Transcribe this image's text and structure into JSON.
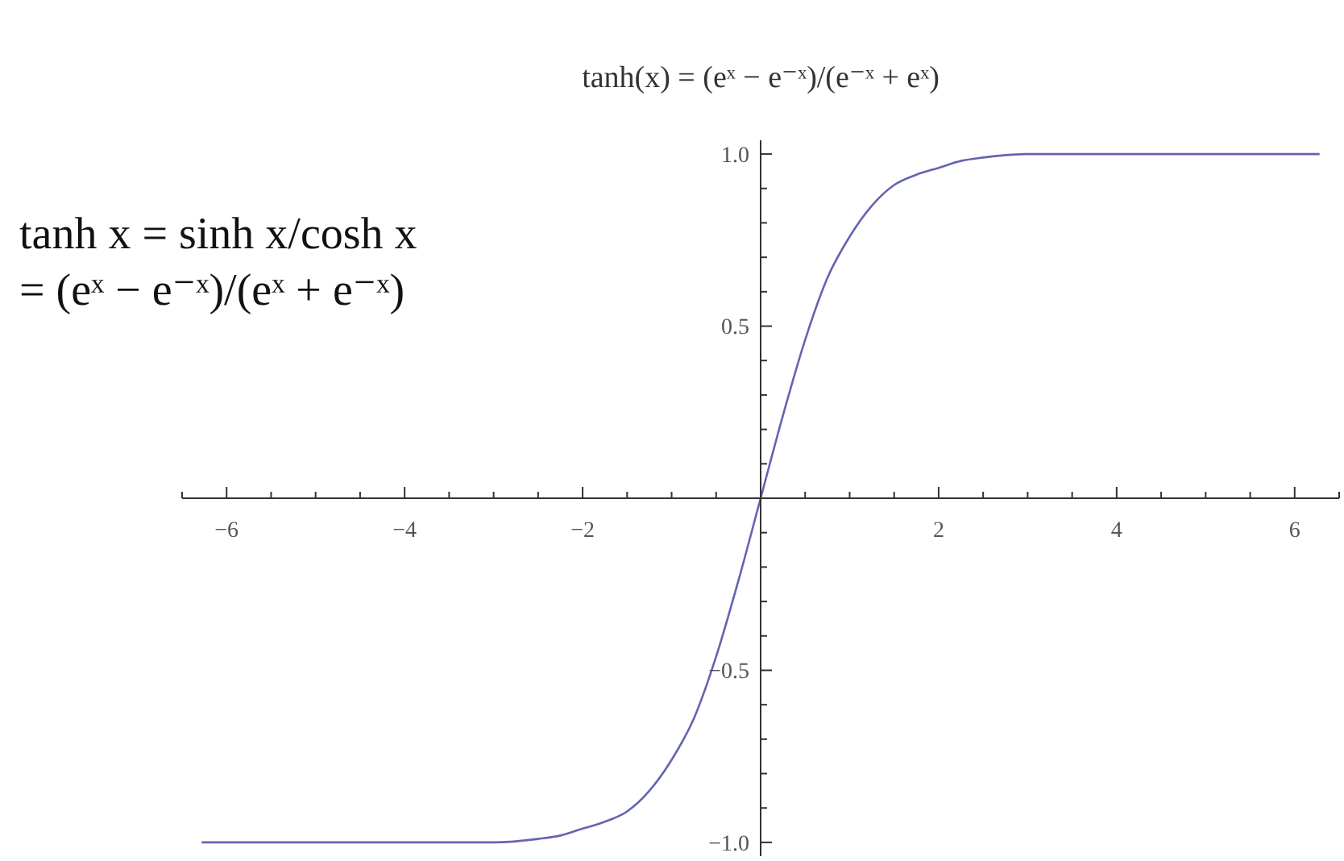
{
  "chart_data": {
    "type": "line",
    "title": "tanh(x) = (eˣ − e⁻ˣ)/(e⁻ˣ + eˣ)",
    "annotations": [
      "tanh x = sinh x/cosh x = (eˣ − e⁻ˣ)/(eˣ + e⁻ˣ)"
    ],
    "x": [
      -6.28,
      -5,
      -4,
      -3,
      -2.5,
      -2.25,
      -2,
      -1.75,
      -1.5,
      -1.25,
      -1,
      -0.75,
      -0.5,
      -0.25,
      0,
      0.25,
      0.5,
      0.75,
      1,
      1.25,
      1.5,
      1.75,
      2,
      2.25,
      2.5,
      3,
      4,
      5,
      6.28
    ],
    "series": [
      {
        "color": "#6464b2",
        "values": [
          -1,
          -1,
          -1,
          -1,
          -0.99,
          -0.98,
          -0.96,
          -0.94,
          -0.91,
          -0.85,
          -0.76,
          -0.64,
          -0.46,
          -0.24,
          0,
          0.24,
          0.46,
          0.64,
          0.76,
          0.85,
          0.91,
          0.94,
          0.96,
          0.98,
          0.99,
          1,
          1,
          1,
          1
        ]
      }
    ],
    "xlim": [
      -6.5,
      6.5
    ],
    "ylim": [
      -1.04,
      1.04
    ],
    "xticks": [
      {
        "value": -6.5,
        "label": null
      },
      -6,
      {
        "value": -5.5,
        "label": null
      },
      {
        "value": -5,
        "label": null
      },
      {
        "value": -4.5,
        "label": null
      },
      -4,
      {
        "value": -3.5,
        "label": null
      },
      {
        "value": -3,
        "label": null
      },
      {
        "value": -2.5,
        "label": null
      },
      -2,
      {
        "value": -1.5,
        "label": null
      },
      {
        "value": -1,
        "label": null
      },
      {
        "value": -0.5,
        "label": null
      },
      {
        "value": 0.5,
        "label": null
      },
      {
        "value": 1,
        "label": null
      },
      {
        "value": 1.5,
        "label": null
      },
      2,
      {
        "value": 2.5,
        "label": null
      },
      {
        "value": 3,
        "label": null
      },
      {
        "value": 3.5,
        "label": null
      },
      4,
      {
        "value": 4.5,
        "label": null
      },
      {
        "value": 5,
        "label": null
      },
      {
        "value": 5.5,
        "label": null
      },
      6,
      {
        "value": 6.5,
        "label": null
      }
    ],
    "yticks": [
      {
        "value": -1,
        "label": "−1.0"
      },
      {
        "value": -0.9,
        "label": null
      },
      {
        "value": -0.8,
        "label": null
      },
      {
        "value": -0.7,
        "label": null
      },
      {
        "value": -0.6,
        "label": null
      },
      {
        "value": -0.5,
        "label": "−0.5"
      },
      {
        "value": -0.4,
        "label": null
      },
      {
        "value": -0.3,
        "label": null
      },
      {
        "value": -0.2,
        "label": null
      },
      {
        "value": -0.1,
        "label": null
      },
      {
        "value": 0.1,
        "label": null
      },
      {
        "value": 0.2,
        "label": null
      },
      {
        "value": 0.3,
        "label": null
      },
      {
        "value": 0.4,
        "label": null
      },
      {
        "value": 0.5,
        "label": "0.5"
      },
      {
        "value": 0.6,
        "label": null
      },
      {
        "value": 0.7,
        "label": null
      },
      {
        "value": 0.8,
        "label": null
      },
      {
        "value": 0.9,
        "label": null
      },
      {
        "value": 1,
        "label": "1.0"
      }
    ]
  }
}
